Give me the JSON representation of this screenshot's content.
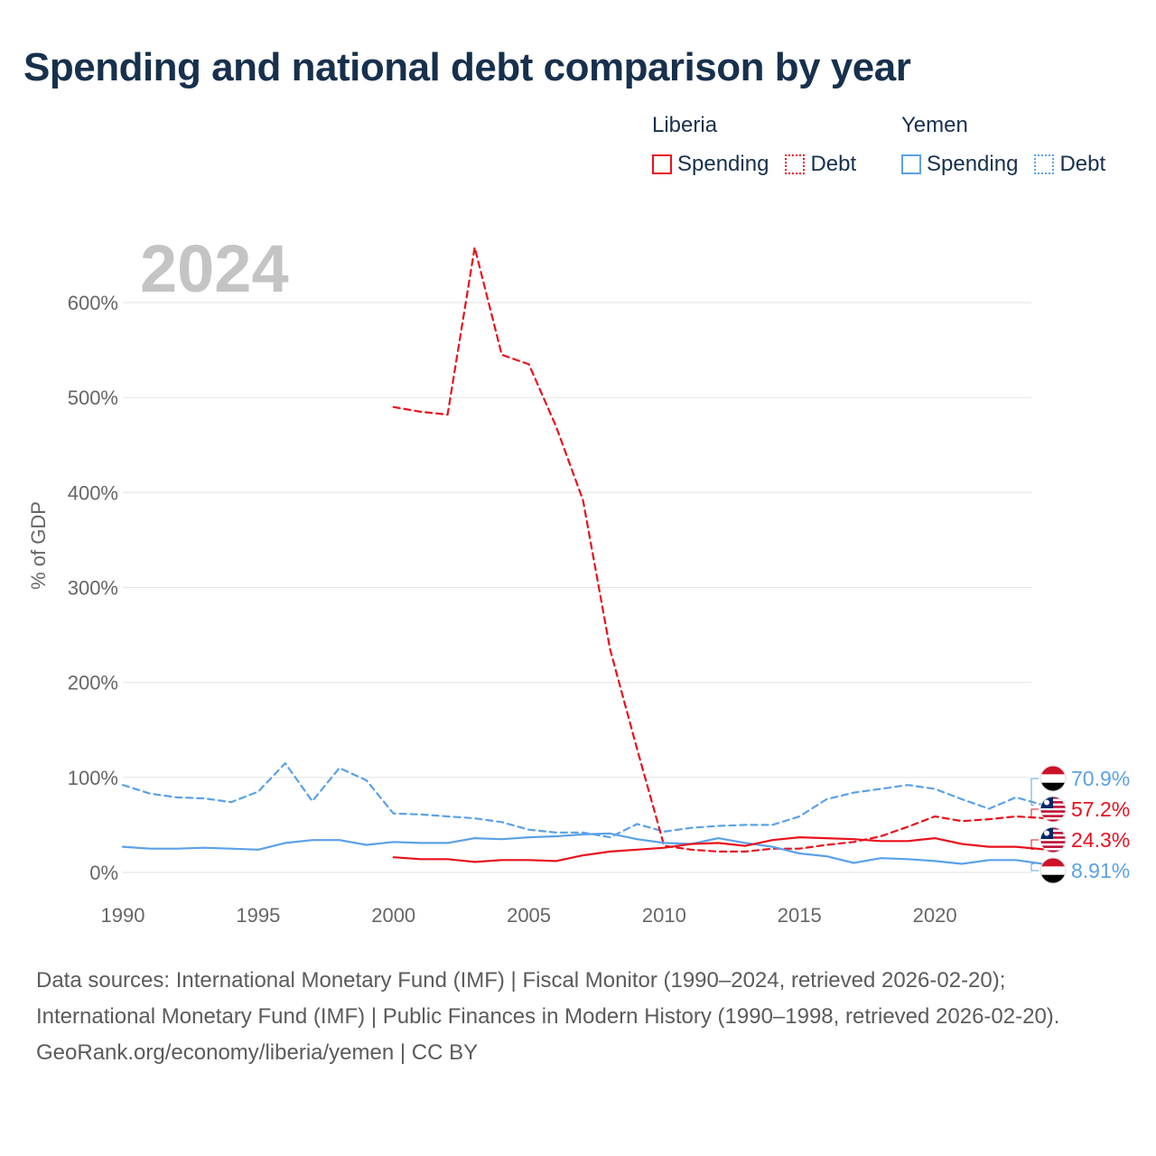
{
  "title": "Spending and national debt comparison by year",
  "legend": {
    "groups": [
      {
        "country": "Liberia",
        "items": [
          {
            "label": "Spending",
            "style": "solid",
            "color": "#e8111d"
          },
          {
            "label": "Debt",
            "style": "dotted",
            "color": "#e8111d"
          }
        ]
      },
      {
        "country": "Yemen",
        "items": [
          {
            "label": "Spending",
            "style": "solid",
            "color": "#5aa1e8"
          },
          {
            "label": "Debt",
            "style": "dotted",
            "color": "#5aa1e8"
          }
        ]
      }
    ]
  },
  "colors": {
    "liberia": "#e8111d",
    "yemen": "#5aa1e8",
    "title": "#17304d",
    "year": "#c4c4c4",
    "axis_text": "#666666"
  },
  "chart_data": {
    "type": "line",
    "year_label": "2024",
    "ylabel": "% of GDP",
    "xlim": [
      1990,
      2024
    ],
    "ylim": [
      0,
      600
    ],
    "x_ticks": [
      1990,
      1995,
      2000,
      2005,
      2010,
      2015,
      2020
    ],
    "y_ticks": [
      0,
      100,
      200,
      300,
      400,
      500,
      600
    ],
    "y_tick_labels": [
      "0%",
      "100%",
      "200%",
      "300%",
      "400%",
      "500%",
      "600%"
    ],
    "series": [
      {
        "name": "Yemen Debt",
        "country": "Yemen",
        "dashed": true,
        "color": "#5aa1e8",
        "x": [
          1990,
          1991,
          1992,
          1993,
          1994,
          1995,
          1996,
          1997,
          1998,
          1999,
          2000,
          2001,
          2002,
          2003,
          2004,
          2005,
          2006,
          2007,
          2008,
          2009,
          2010,
          2011,
          2012,
          2013,
          2014,
          2015,
          2016,
          2017,
          2018,
          2019,
          2020,
          2021,
          2022,
          2023,
          2024
        ],
        "values": [
          92,
          83,
          79,
          78,
          74,
          85,
          115,
          75,
          110,
          97,
          62,
          61,
          59,
          57,
          53,
          45,
          42,
          42,
          37,
          51,
          43,
          47,
          49,
          50,
          50,
          59,
          77,
          84,
          88,
          92,
          88,
          77,
          67,
          79,
          70.9
        ]
      },
      {
        "name": "Liberia Debt",
        "country": "Liberia",
        "dashed": true,
        "color": "#e8111d",
        "x": [
          2000,
          2001,
          2002,
          2003,
          2004,
          2005,
          2006,
          2007,
          2008,
          2009,
          2010,
          2011,
          2012,
          2013,
          2014,
          2015,
          2016,
          2017,
          2018,
          2019,
          2020,
          2021,
          2022,
          2023,
          2024
        ],
        "values": [
          490,
          485,
          482,
          658,
          545,
          535,
          470,
          392,
          235,
          130,
          28,
          24,
          22,
          22,
          25,
          25,
          29,
          32,
          38,
          48,
          59,
          54,
          56,
          59,
          57.2
        ]
      },
      {
        "name": "Yemen Spending",
        "country": "Yemen",
        "dashed": false,
        "color": "#5aa1e8",
        "x": [
          1990,
          1991,
          1992,
          1993,
          1994,
          1995,
          1996,
          1997,
          1998,
          1999,
          2000,
          2001,
          2002,
          2003,
          2004,
          2005,
          2006,
          2007,
          2008,
          2009,
          2010,
          2011,
          2012,
          2013,
          2014,
          2015,
          2016,
          2017,
          2018,
          2019,
          2020,
          2021,
          2022,
          2023,
          2024
        ],
        "values": [
          27,
          25,
          25,
          26,
          25,
          24,
          31,
          34,
          34,
          29,
          32,
          31,
          31,
          36,
          35,
          37,
          38,
          40,
          41,
          35,
          31,
          30,
          36,
          31,
          27,
          20,
          17,
          10,
          15,
          14,
          12,
          9,
          13,
          13,
          8.91
        ]
      },
      {
        "name": "Liberia Spending",
        "country": "Liberia",
        "dashed": false,
        "color": "#e8111d",
        "x": [
          2000,
          2001,
          2002,
          2003,
          2004,
          2005,
          2006,
          2007,
          2008,
          2009,
          2010,
          2011,
          2012,
          2013,
          2014,
          2015,
          2016,
          2017,
          2018,
          2019,
          2020,
          2021,
          2022,
          2023,
          2024
        ],
        "values": [
          16,
          14,
          14,
          11,
          13,
          13,
          12,
          18,
          22,
          24,
          26,
          30,
          31,
          28,
          34,
          37,
          36,
          35,
          33,
          33,
          36,
          30,
          27,
          27,
          24.3
        ]
      }
    ],
    "end_labels": [
      {
        "series": "Yemen Debt",
        "text": "70.9%",
        "country": "Yemen"
      },
      {
        "series": "Liberia Debt",
        "text": "57.2%",
        "country": "Liberia"
      },
      {
        "series": "Liberia Spending",
        "text": "24.3%",
        "country": "Liberia"
      },
      {
        "series": "Yemen Spending",
        "text": "8.91%",
        "country": "Yemen"
      }
    ]
  },
  "footer": {
    "sources": "Data sources: International Monetary Fund (IMF) | Fiscal Monitor (1990–2024, retrieved 2026-02-20); International Monetary Fund (IMF) | Public Finances in Modern History (1990–1998, retrieved 2026-02-20).",
    "credit": "GeoRank.org/economy/liberia/yemen | CC BY"
  }
}
